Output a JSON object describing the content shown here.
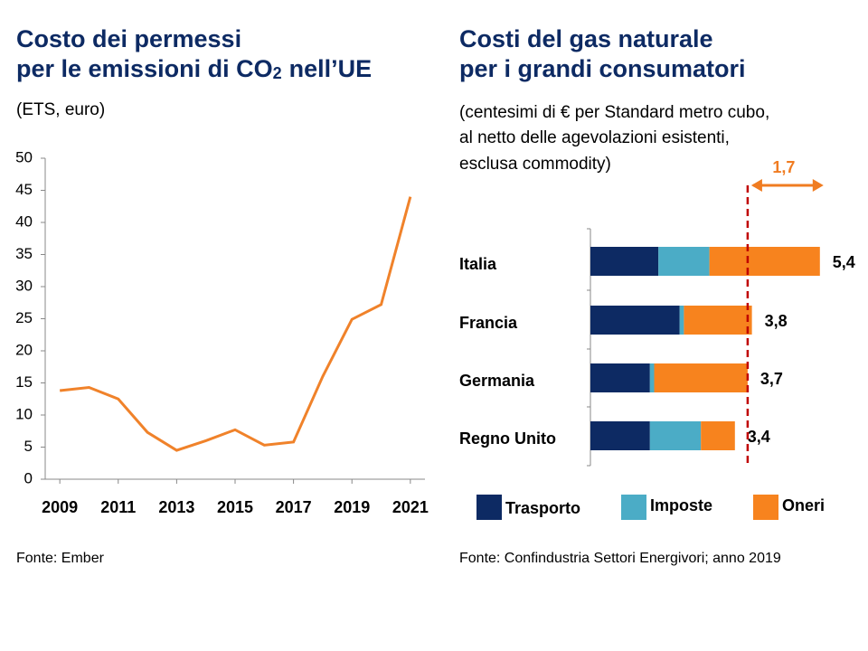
{
  "chart_data": [
    {
      "type": "line",
      "title": [
        "Costo dei permessi",
        "per le emissioni di CO"
      ],
      "title_subscript": "2",
      "title_suffix": "nell’UE",
      "subtitle": "(ETS, euro)",
      "x": [
        2009,
        2010,
        2011,
        2012,
        2013,
        2014,
        2015,
        2016,
        2017,
        2018,
        2019,
        2020,
        2021
      ],
      "series": [
        {
          "name": "ETS",
          "color": "#f0822a",
          "values": [
            13.8,
            14.3,
            12.5,
            7.3,
            4.5,
            6.0,
            7.7,
            5.3,
            5.8,
            16.0,
            24.9,
            27.2,
            44.0
          ]
        }
      ],
      "xlim": [
        2008.5,
        2021.5
      ],
      "xticks": [
        2009,
        2011,
        2013,
        2015,
        2017,
        2019,
        2021
      ],
      "ylim": [
        0,
        50
      ],
      "yticks": [
        0,
        5,
        10,
        15,
        20,
        25,
        30,
        35,
        40,
        45,
        50
      ],
      "source": "Fonte: Ember"
    },
    {
      "type": "hbar_stacked",
      "title": [
        "Costi del gas naturale",
        "per i grandi consumatori"
      ],
      "subtitle": [
        "(centesimi di € per Standard metro cubo,",
        "al netto delle agevolazioni esistenti,",
        "esclusa commodity)"
      ],
      "categories": [
        "Italia",
        "Francia",
        "Germania",
        "Regno Unito"
      ],
      "series": [
        {
          "name": "Trasporto",
          "color": "#0d2a63",
          "values": [
            1.6,
            2.1,
            1.4,
            1.4
          ]
        },
        {
          "name": "Imposte",
          "color": "#4bacc6",
          "values": [
            1.2,
            0.1,
            0.1,
            1.2
          ]
        },
        {
          "name": "Oneri",
          "color": "#f7831e",
          "values": [
            2.6,
            1.6,
            2.2,
            0.8
          ]
        }
      ],
      "totals": [
        5.4,
        3.8,
        3.7,
        3.4
      ],
      "total_labels": [
        "5,4",
        "3,8",
        "3,7",
        "3,4"
      ],
      "reference_line": 3.7,
      "reference_color": "#c00000",
      "annotation": {
        "value": 1.7,
        "label": "1,7",
        "color": "#f07c21"
      },
      "xlim": [
        0,
        6
      ],
      "source": "Fonte: Confindustria Settori Energivori; anno 2019"
    }
  ]
}
